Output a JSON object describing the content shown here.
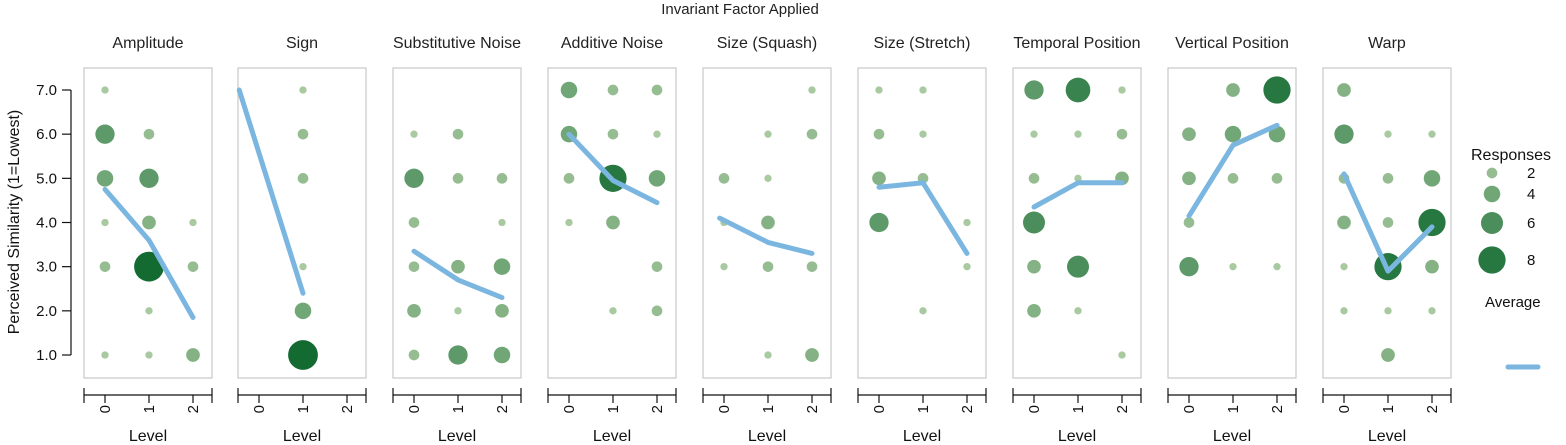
{
  "chart_data": {
    "type": "scatter",
    "title": "Invariant Factor Applied",
    "xlabel": "Level",
    "ylabel": "Perceived Similarity (1=Lowest)",
    "x_ticks": [
      "0",
      "1",
      "2"
    ],
    "y_ticks": [
      "1.0",
      "2.0",
      "3.0",
      "4.0",
      "5.0",
      "6.0",
      "7.0"
    ],
    "ylim": [
      1,
      7
    ],
    "xlim": [
      0,
      2
    ],
    "grid": false,
    "colors": {
      "dot_light": "#a9c9a0",
      "dot_dark": "#136b32",
      "average_line": "#7bb6e0",
      "frame": "#c8c8c8"
    },
    "legend": {
      "position": "right",
      "title": "Responses",
      "size_entries": [
        2,
        4,
        6,
        8
      ],
      "size_labels": [
        "2",
        "4",
        "6",
        "8"
      ],
      "line_label": "Average"
    },
    "panels": [
      {
        "name": "Amplitude",
        "points": [
          [
            0,
            7,
            1
          ],
          [
            0,
            6,
            5
          ],
          [
            0,
            5,
            4
          ],
          [
            0,
            4,
            1
          ],
          [
            0,
            3,
            2
          ],
          [
            0,
            1,
            1
          ],
          [
            1,
            6,
            2
          ],
          [
            1,
            5,
            5
          ],
          [
            1,
            4,
            3
          ],
          [
            1,
            3,
            9
          ],
          [
            1,
            2,
            1
          ],
          [
            1,
            1,
            1
          ],
          [
            2,
            4,
            1
          ],
          [
            2,
            3,
            2
          ],
          [
            2,
            1,
            3
          ]
        ],
        "average": [
          [
            0,
            4.75
          ],
          [
            1,
            3.6
          ],
          [
            2,
            1.85
          ]
        ]
      },
      {
        "name": "Sign",
        "points": [
          [
            1,
            7,
            1
          ],
          [
            1,
            6,
            2
          ],
          [
            1,
            5,
            2
          ],
          [
            1,
            3,
            1
          ],
          [
            1,
            2,
            4
          ],
          [
            1,
            1,
            9
          ]
        ],
        "average": [
          [
            -0.45,
            7.0
          ],
          [
            1,
            2.4
          ]
        ]
      },
      {
        "name": "Substitutive Noise",
        "points": [
          [
            0,
            6,
            1
          ],
          [
            0,
            5,
            5
          ],
          [
            0,
            4,
            2
          ],
          [
            0,
            3,
            2
          ],
          [
            0,
            2,
            3
          ],
          [
            0,
            1,
            2
          ],
          [
            1,
            6,
            2
          ],
          [
            1,
            5,
            2
          ],
          [
            1,
            3,
            3
          ],
          [
            1,
            2,
            1
          ],
          [
            1,
            1,
            5
          ],
          [
            2,
            5,
            2
          ],
          [
            2,
            4,
            1
          ],
          [
            2,
            3,
            4
          ],
          [
            2,
            2,
            3
          ],
          [
            2,
            1,
            4
          ]
        ],
        "average": [
          [
            0,
            3.35
          ],
          [
            1,
            2.7
          ],
          [
            2,
            2.3
          ]
        ]
      },
      {
        "name": "Additive Noise",
        "points": [
          [
            0,
            7,
            4
          ],
          [
            0,
            6,
            4
          ],
          [
            0,
            5,
            2
          ],
          [
            0,
            4,
            1
          ],
          [
            1,
            7,
            2
          ],
          [
            1,
            6,
            2
          ],
          [
            1,
            5,
            8
          ],
          [
            1,
            4,
            3
          ],
          [
            1,
            2,
            1
          ],
          [
            2,
            7,
            2
          ],
          [
            2,
            6,
            1
          ],
          [
            2,
            5,
            4
          ],
          [
            2,
            3,
            2
          ],
          [
            2,
            2,
            2
          ]
        ],
        "average": [
          [
            0,
            6.0
          ],
          [
            1,
            4.95
          ],
          [
            2,
            4.45
          ]
        ]
      },
      {
        "name": "Size (Squash)",
        "points": [
          [
            0,
            5,
            2
          ],
          [
            0,
            4,
            1
          ],
          [
            0,
            3,
            1
          ],
          [
            1,
            6,
            1
          ],
          [
            1,
            5,
            1
          ],
          [
            1,
            4,
            3
          ],
          [
            1,
            3,
            2
          ],
          [
            1,
            1,
            1
          ],
          [
            2,
            7,
            1
          ],
          [
            2,
            6,
            2
          ],
          [
            2,
            3,
            2
          ],
          [
            2,
            1,
            3
          ]
        ],
        "average": [
          [
            -0.1,
            4.1
          ],
          [
            1,
            3.55
          ],
          [
            2,
            3.3
          ]
        ]
      },
      {
        "name": "Size (Stretch)",
        "points": [
          [
            0,
            7,
            1
          ],
          [
            0,
            6,
            2
          ],
          [
            0,
            5,
            3
          ],
          [
            0,
            4,
            5
          ],
          [
            1,
            7,
            1
          ],
          [
            1,
            6,
            1
          ],
          [
            1,
            5,
            2
          ],
          [
            1,
            2,
            1
          ],
          [
            2,
            4,
            1
          ],
          [
            2,
            3,
            1
          ]
        ],
        "average": [
          [
            0,
            4.8
          ],
          [
            1,
            4.9
          ],
          [
            2,
            3.3
          ]
        ]
      },
      {
        "name": "Temporal Position",
        "points": [
          [
            0,
            7,
            5
          ],
          [
            0,
            6,
            1
          ],
          [
            0,
            5,
            2
          ],
          [
            0,
            4,
            6
          ],
          [
            0,
            3,
            3
          ],
          [
            0,
            2,
            3
          ],
          [
            1,
            7,
            7
          ],
          [
            1,
            6,
            1
          ],
          [
            1,
            5,
            1
          ],
          [
            1,
            3,
            6
          ],
          [
            1,
            2,
            1
          ],
          [
            2,
            7,
            1
          ],
          [
            2,
            6,
            2
          ],
          [
            2,
            5,
            3
          ],
          [
            2,
            1,
            1
          ]
        ],
        "average": [
          [
            0,
            4.35
          ],
          [
            1,
            4.9
          ],
          [
            2,
            4.9
          ]
        ]
      },
      {
        "name": "Vertical Position",
        "points": [
          [
            0,
            6,
            3
          ],
          [
            0,
            5,
            3
          ],
          [
            0,
            4,
            2
          ],
          [
            0,
            3,
            5
          ],
          [
            1,
            7,
            3
          ],
          [
            1,
            6,
            4
          ],
          [
            1,
            5,
            2
          ],
          [
            1,
            3,
            1
          ],
          [
            2,
            7,
            8
          ],
          [
            2,
            6,
            4
          ],
          [
            2,
            5,
            2
          ],
          [
            2,
            3,
            1
          ]
        ],
        "average": [
          [
            0,
            4.15
          ],
          [
            1,
            5.75
          ],
          [
            2,
            6.2
          ]
        ]
      },
      {
        "name": "Warp",
        "points": [
          [
            0,
            7,
            3
          ],
          [
            0,
            6,
            5
          ],
          [
            0,
            5,
            2
          ],
          [
            0,
            4,
            3
          ],
          [
            0,
            3,
            1
          ],
          [
            0,
            2,
            1
          ],
          [
            1,
            5,
            2
          ],
          [
            1,
            4,
            2
          ],
          [
            1,
            3,
            8
          ],
          [
            1,
            2,
            1
          ],
          [
            1,
            1,
            3
          ],
          [
            1,
            6,
            1
          ],
          [
            2,
            6,
            1
          ],
          [
            2,
            5,
            4
          ],
          [
            2,
            4,
            8
          ],
          [
            2,
            3,
            3
          ],
          [
            2,
            2,
            1
          ]
        ],
        "average": [
          [
            0,
            5.1
          ],
          [
            1,
            2.9
          ],
          [
            2,
            3.9
          ]
        ]
      }
    ]
  }
}
